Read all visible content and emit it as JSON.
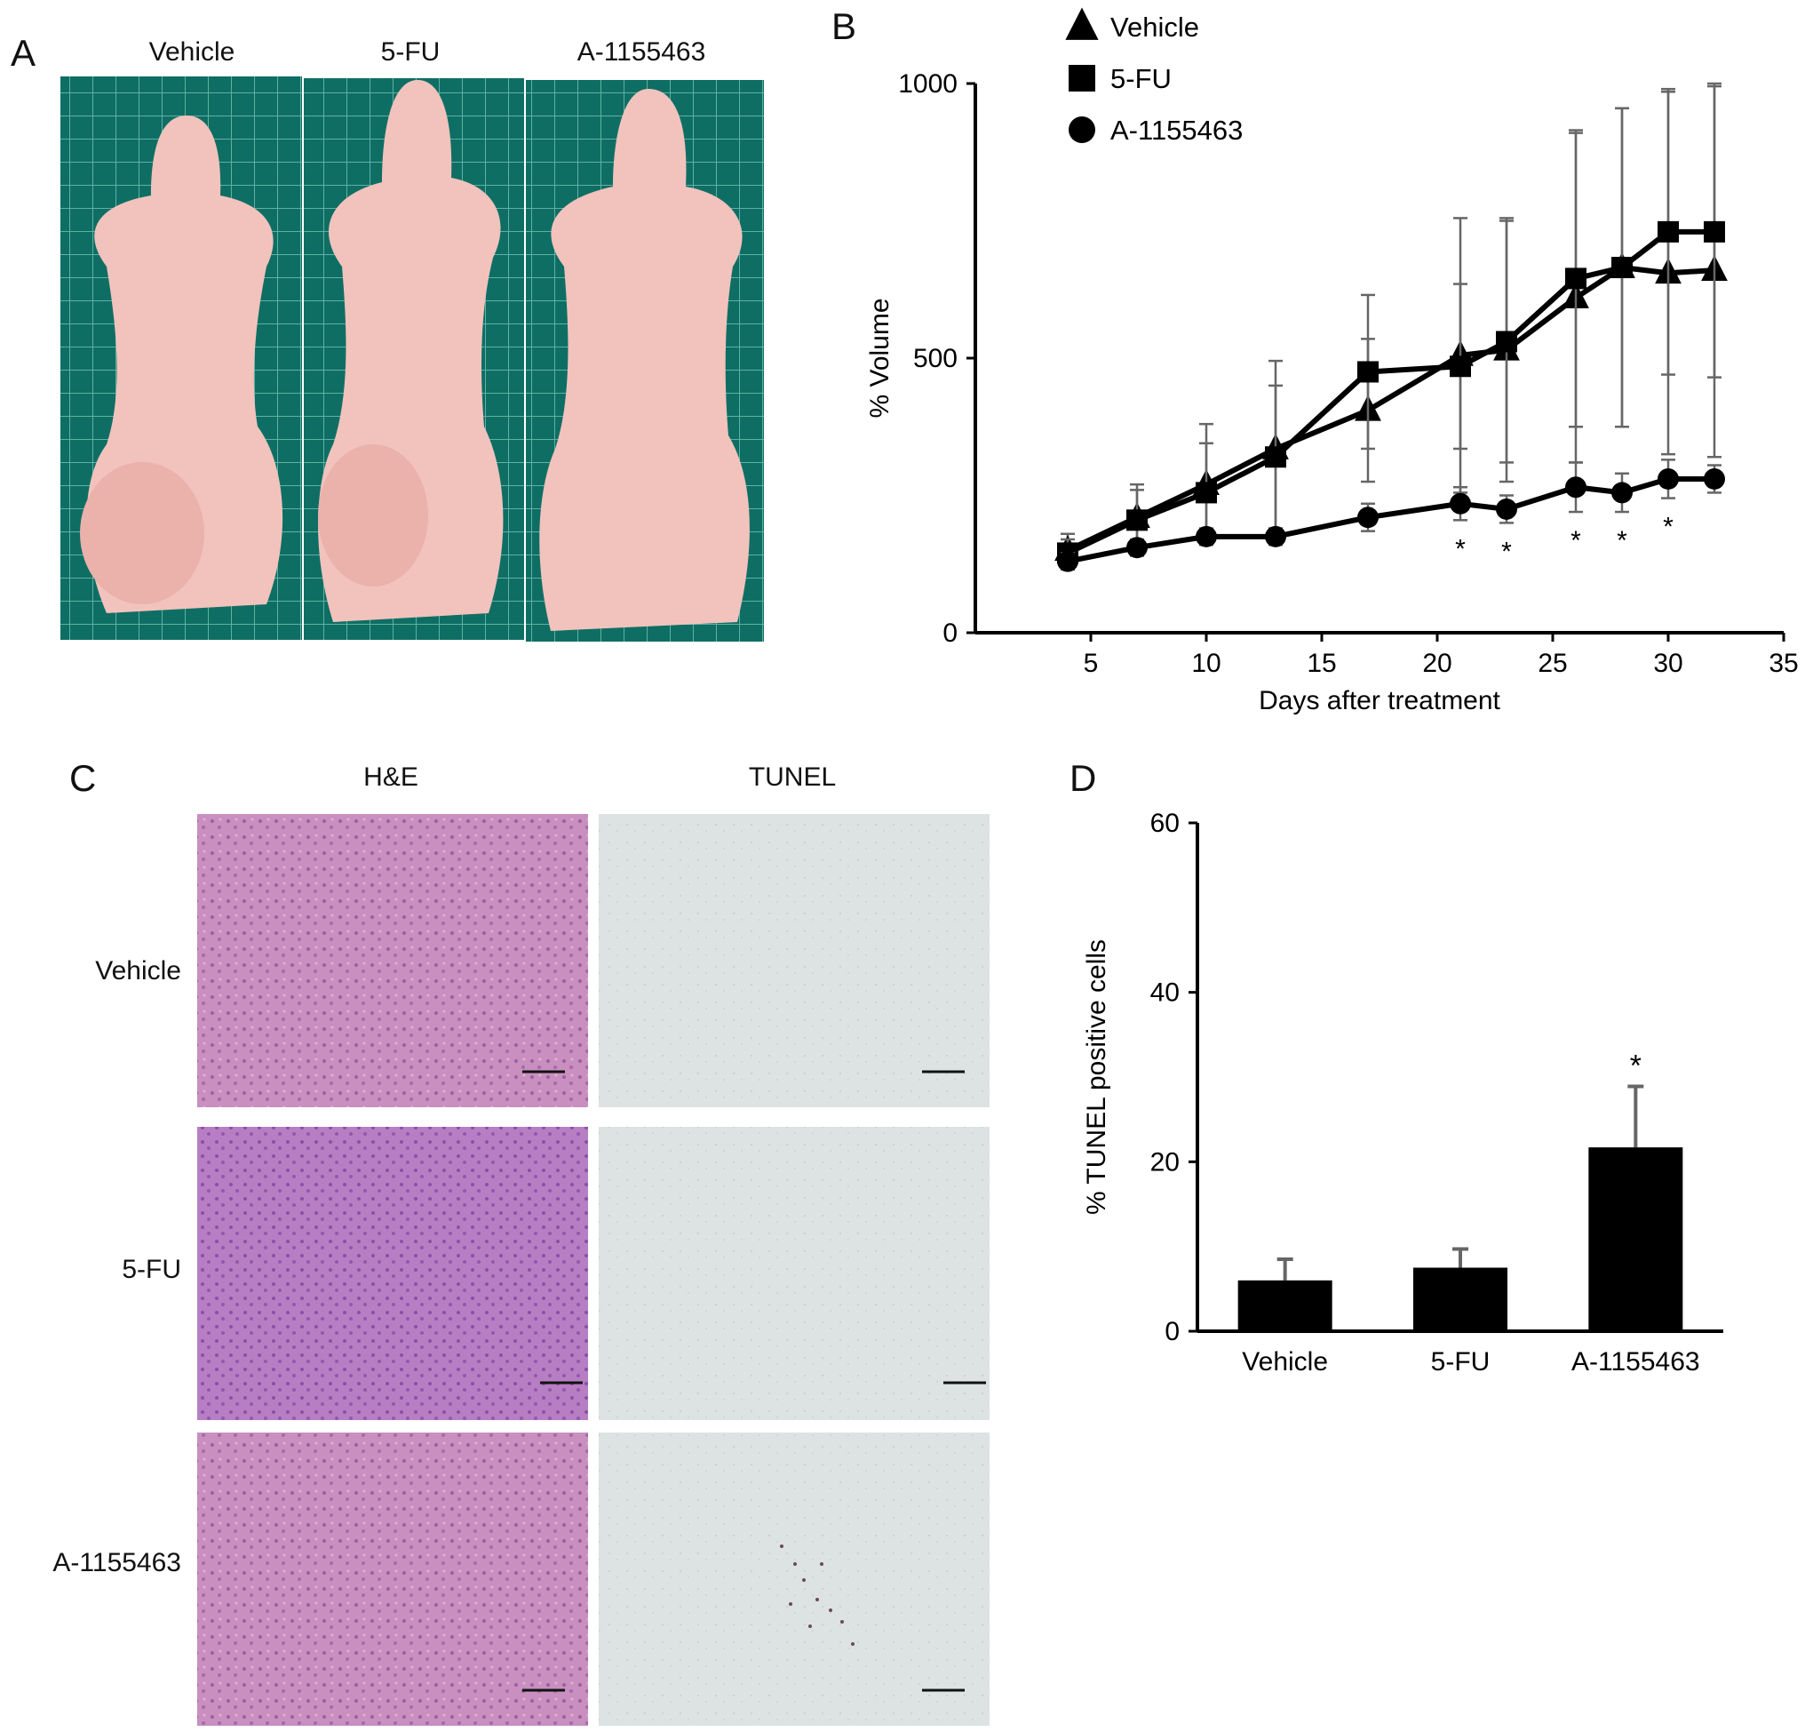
{
  "panels": {
    "A": {
      "label": "A",
      "columns": [
        "Vehicle",
        "5-FU",
        "A-1155463"
      ]
    },
    "B": {
      "label": "B"
    },
    "C": {
      "label": "C",
      "columns": [
        "H&E",
        "TUNEL"
      ],
      "rows": [
        "Vehicle",
        "5-FU",
        "A-1155463"
      ]
    },
    "D": {
      "label": "D"
    }
  },
  "colors": {
    "grid_bg": "#0f6e64",
    "grid_line": "#5fb0a4",
    "mouse_skin": "#f1c3bc",
    "he_tissue": "#c88fbf",
    "he_tissue_dark": "#b87ec4",
    "tunel_bg": "#dde3e3",
    "ink": "#000000",
    "errorbar": "#666666"
  },
  "chart_data": [
    {
      "panel": "B",
      "type": "line",
      "title": "",
      "xlabel": "Days after treatment",
      "ylabel": "% Volume",
      "xlim": [
        0,
        35
      ],
      "ylim": [
        0,
        1000
      ],
      "xticks": [
        5,
        10,
        15,
        20,
        25,
        30,
        35
      ],
      "yticks": [
        0,
        500,
        1000
      ],
      "legend_position": "top-left",
      "series": [
        {
          "name": "Vehicle",
          "marker": "triangle",
          "x": [
            4,
            7,
            10,
            13,
            17,
            21,
            23,
            26,
            28,
            30,
            32
          ],
          "y": [
            150,
            210,
            270,
            335,
            405,
            505,
            515,
            610,
            665,
            655,
            660
          ],
          "error": [
            30,
            60,
            110,
            160,
            130,
            250,
            240,
            300,
            290,
            330,
            340
          ]
        },
        {
          "name": "5-FU",
          "marker": "square",
          "x": [
            4,
            7,
            10,
            13,
            17,
            21,
            23,
            26,
            28,
            30,
            32
          ],
          "y": [
            145,
            205,
            255,
            320,
            475,
            485,
            530,
            645,
            665,
            730,
            730
          ],
          "error": [
            25,
            55,
            90,
            130,
            140,
            150,
            220,
            270,
            290,
            260,
            265
          ]
        },
        {
          "name": "A-1155463",
          "marker": "circle",
          "x": [
            4,
            7,
            10,
            13,
            17,
            21,
            23,
            26,
            28,
            30,
            32
          ],
          "y": [
            130,
            155,
            175,
            175,
            210,
            235,
            225,
            265,
            255,
            280,
            280
          ],
          "error": [
            15,
            15,
            15,
            15,
            25,
            30,
            25,
            45,
            35,
            35,
            25
          ]
        }
      ],
      "significance": {
        "symbol": "*",
        "x": [
          21,
          23,
          26,
          28,
          30
        ]
      }
    },
    {
      "panel": "D",
      "type": "bar",
      "title": "",
      "xlabel": "",
      "ylabel": "% TUNEL positive cells",
      "ylim": [
        0,
        60
      ],
      "yticks": [
        0,
        20,
        40,
        60
      ],
      "categories": [
        "Vehicle",
        "5-FU",
        "A-1155463"
      ],
      "values": [
        6,
        7.5,
        21.7
      ],
      "error": [
        2.5,
        2.2,
        7.2
      ],
      "significance": [
        "",
        "",
        "*"
      ]
    }
  ]
}
